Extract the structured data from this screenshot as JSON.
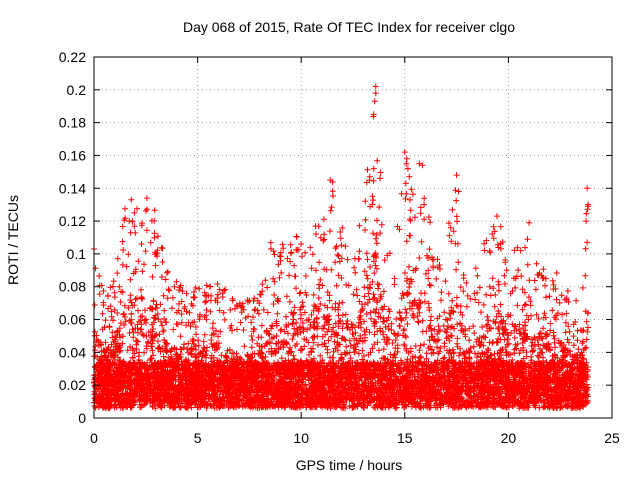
{
  "chart_data": {
    "type": "scatter",
    "title": "Day 068 of 2015, Rate Of TEC Index for receiver clgo",
    "xlabel": "GPS time / hours",
    "ylabel": "ROTI / TECUs",
    "xlim": [
      0,
      25
    ],
    "ylim": [
      0,
      0.22
    ],
    "x_ticks": [
      "0",
      "5",
      "10",
      "15",
      "20",
      "25"
    ],
    "y_ticks": [
      "0",
      "0.02",
      "0.04",
      "0.06",
      "0.08",
      "0.1",
      "0.12",
      "0.14",
      "0.16",
      "0.18",
      "0.2",
      "0.22"
    ],
    "grid": true,
    "marker": "plus",
    "color": "#ff0000",
    "envelope": [
      {
        "x": 0.0,
        "y": 0.104
      },
      {
        "x": 0.5,
        "y": 0.075
      },
      {
        "x": 1.0,
        "y": 0.09
      },
      {
        "x": 1.5,
        "y": 0.128
      },
      {
        "x": 1.8,
        "y": 0.134
      },
      {
        "x": 2.5,
        "y": 0.134
      },
      {
        "x": 3.0,
        "y": 0.128
      },
      {
        "x": 3.5,
        "y": 0.09
      },
      {
        "x": 4.0,
        "y": 0.085
      },
      {
        "x": 5.0,
        "y": 0.08
      },
      {
        "x": 6.0,
        "y": 0.084
      },
      {
        "x": 7.0,
        "y": 0.07
      },
      {
        "x": 8.0,
        "y": 0.075
      },
      {
        "x": 8.5,
        "y": 0.108
      },
      {
        "x": 9.0,
        "y": 0.105
      },
      {
        "x": 9.5,
        "y": 0.12
      },
      {
        "x": 10.0,
        "y": 0.11
      },
      {
        "x": 10.5,
        "y": 0.118
      },
      {
        "x": 11.0,
        "y": 0.125
      },
      {
        "x": 11.5,
        "y": 0.145
      },
      {
        "x": 12.0,
        "y": 0.12
      },
      {
        "x": 12.5,
        "y": 0.11
      },
      {
        "x": 13.0,
        "y": 0.13
      },
      {
        "x": 13.6,
        "y": 0.203
      },
      {
        "x": 14.0,
        "y": 0.12
      },
      {
        "x": 14.5,
        "y": 0.1
      },
      {
        "x": 15.0,
        "y": 0.163
      },
      {
        "x": 15.5,
        "y": 0.13
      },
      {
        "x": 15.8,
        "y": 0.155
      },
      {
        "x": 16.5,
        "y": 0.1
      },
      {
        "x": 17.0,
        "y": 0.11
      },
      {
        "x": 17.5,
        "y": 0.148
      },
      {
        "x": 18.0,
        "y": 0.09
      },
      {
        "x": 18.5,
        "y": 0.1
      },
      {
        "x": 19.0,
        "y": 0.11
      },
      {
        "x": 19.5,
        "y": 0.123
      },
      {
        "x": 20.0,
        "y": 0.1
      },
      {
        "x": 20.5,
        "y": 0.105
      },
      {
        "x": 21.0,
        "y": 0.12
      },
      {
        "x": 21.5,
        "y": 0.095
      },
      {
        "x": 22.0,
        "y": 0.103
      },
      {
        "x": 22.5,
        "y": 0.085
      },
      {
        "x": 23.0,
        "y": 0.075
      },
      {
        "x": 23.5,
        "y": 0.07
      },
      {
        "x": 23.8,
        "y": 0.14
      }
    ],
    "highlights": [
      {
        "x": 13.6,
        "y": 0.202
      },
      {
        "x": 13.6,
        "y": 0.198
      },
      {
        "x": 13.55,
        "y": 0.193
      },
      {
        "x": 13.5,
        "y": 0.185
      },
      {
        "x": 13.5,
        "y": 0.152
      },
      {
        "x": 15.0,
        "y": 0.162
      },
      {
        "x": 15.1,
        "y": 0.158
      },
      {
        "x": 15.15,
        "y": 0.152
      },
      {
        "x": 15.05,
        "y": 0.143
      },
      {
        "x": 15.7,
        "y": 0.155
      },
      {
        "x": 15.85,
        "y": 0.154
      },
      {
        "x": 17.5,
        "y": 0.148
      },
      {
        "x": 17.6,
        "y": 0.138
      },
      {
        "x": 11.4,
        "y": 0.145
      },
      {
        "x": 23.8,
        "y": 0.14
      },
      {
        "x": 23.85,
        "y": 0.13
      },
      {
        "x": 23.75,
        "y": 0.12
      },
      {
        "x": 23.8,
        "y": 0.107
      },
      {
        "x": 1.8,
        "y": 0.133
      },
      {
        "x": 2.55,
        "y": 0.134
      },
      {
        "x": 19.45,
        "y": 0.123
      },
      {
        "x": 0.0,
        "y": 0.103
      },
      {
        "x": 21.0,
        "y": 0.119
      }
    ]
  }
}
